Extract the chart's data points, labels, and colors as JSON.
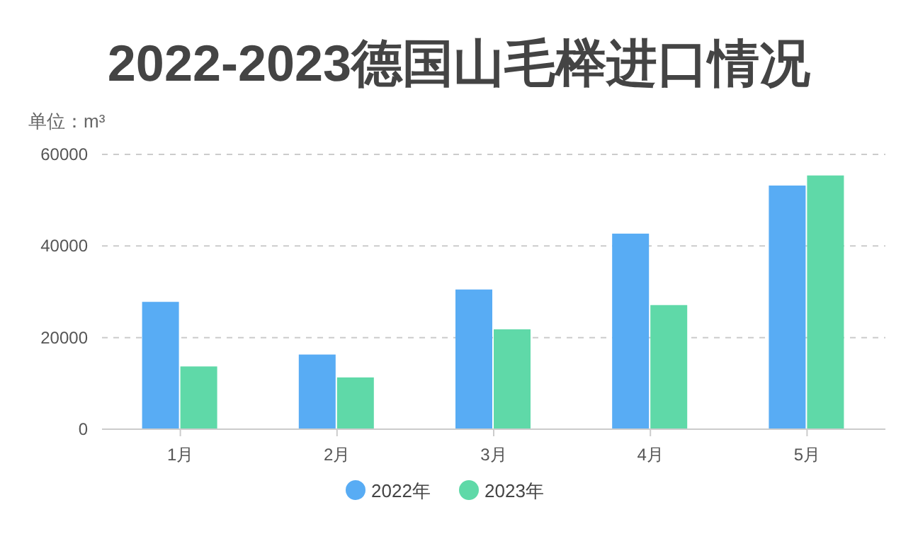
{
  "chart_data": {
    "type": "bar",
    "title": "2022-2023德国山毛榉进口情况",
    "subtitle": "单位：m³",
    "categories": [
      "1月",
      "2月",
      "3月",
      "4月",
      "5月"
    ],
    "series": [
      {
        "name": "2022年",
        "color": "#58acf4",
        "values": [
          27800,
          16300,
          30500,
          42700,
          53200
        ]
      },
      {
        "name": "2023年",
        "color": "#5fd9a8",
        "values": [
          13700,
          11300,
          21800,
          27100,
          55400
        ]
      }
    ],
    "ylim": [
      0,
      60000
    ],
    "yticks": [
      0,
      20000,
      40000,
      60000
    ],
    "grid": "y",
    "legend": "bottom"
  }
}
